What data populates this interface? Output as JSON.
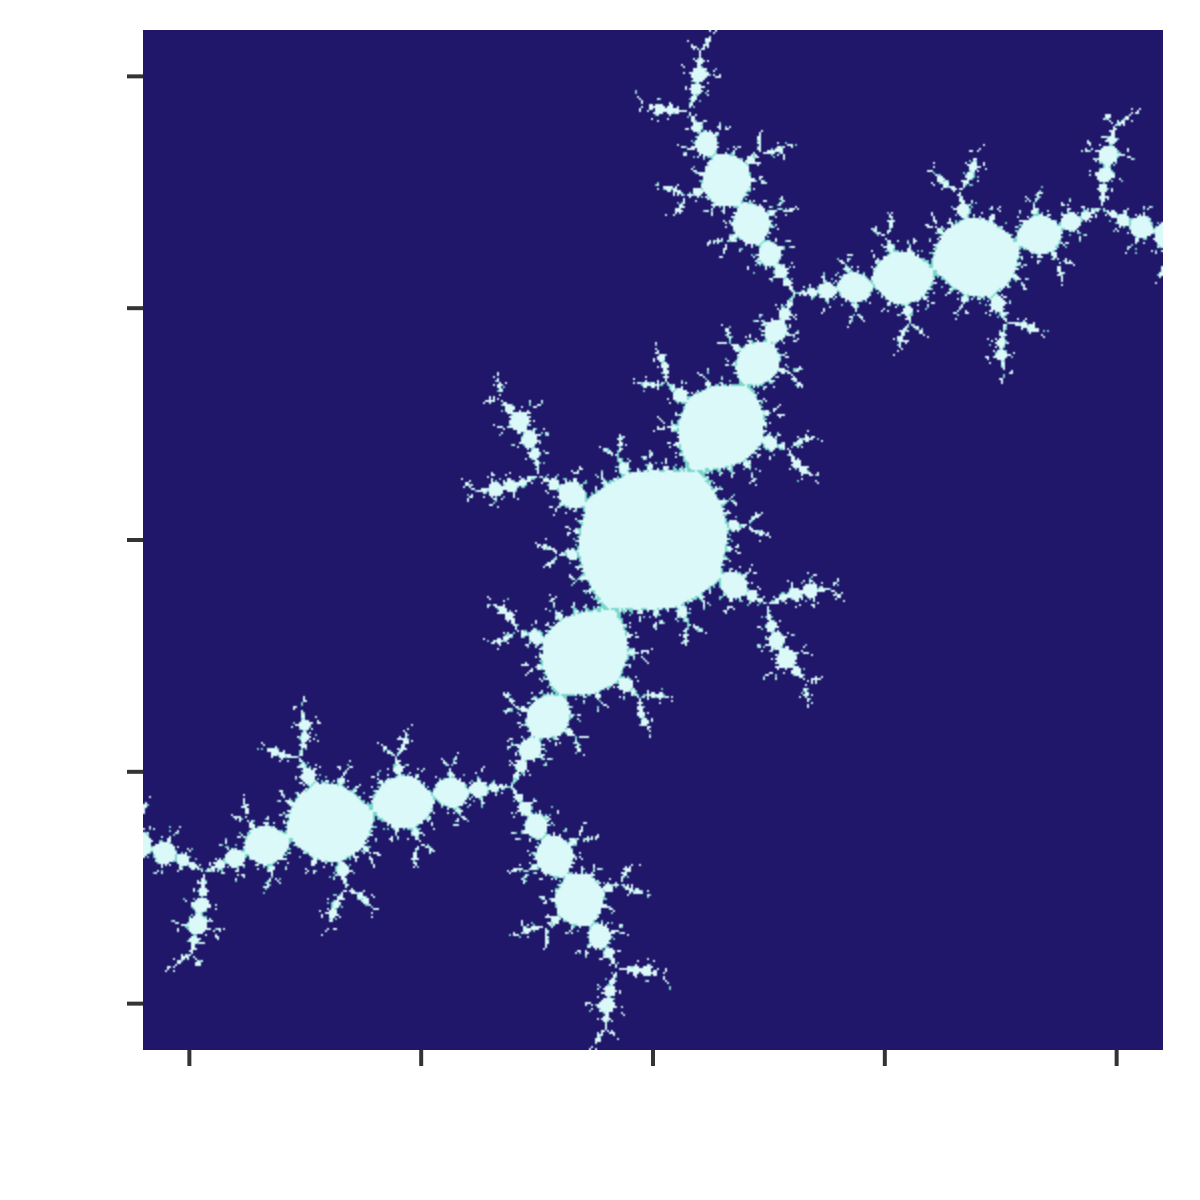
{
  "chart_data": {
    "type": "heatmap",
    "title": "",
    "xlabel": "",
    "ylabel": "",
    "xlim": [
      -1.1,
      1.1
    ],
    "ylim": [
      -1.1,
      1.1
    ],
    "grid": false,
    "legend": "none",
    "x_ticks": [
      -1.0,
      -0.5,
      0.0,
      0.5,
      1.0
    ],
    "y_ticks": [
      -1.0,
      -0.5,
      0.0,
      0.5,
      1.0
    ],
    "x_tick_labels": [
      "",
      "",
      "",
      "",
      ""
    ],
    "y_tick_labels": [
      "",
      "",
      "",
      "",
      ""
    ],
    "fractal": {
      "kind": "julia-set",
      "c_real": -0.117,
      "c_imag": -0.856,
      "max_iterations": 200,
      "band_1_threshold": 40,
      "band_2_threshold": 90
    },
    "colors": {
      "escaped": "#20166a",
      "band_1": "#78d6ca",
      "band_2": "#daf9f8",
      "interior": "#daf9f8",
      "tick": "#333333"
    }
  }
}
